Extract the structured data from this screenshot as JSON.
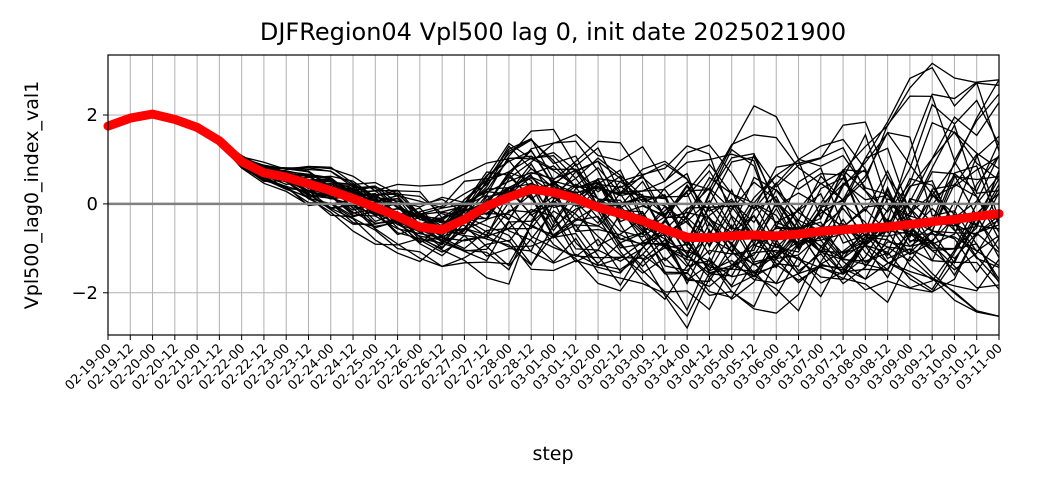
{
  "chart_data": {
    "type": "line",
    "title": "DJFRegion04 Vpl500 lag 0, init date 2025021900",
    "xlabel": "step",
    "ylabel": "Vpl500_lag0_index_val1",
    "categories": [
      "02-19-00",
      "02-19-12",
      "02-20-00",
      "02-20-12",
      "02-21-00",
      "02-21-12",
      "02-22-00",
      "02-22-12",
      "02-23-00",
      "02-23-12",
      "02-24-00",
      "02-24-12",
      "02-25-00",
      "02-25-12",
      "02-26-00",
      "02-26-12",
      "02-27-00",
      "02-27-12",
      "02-28-00",
      "02-28-12",
      "03-01-00",
      "03-01-12",
      "03-02-00",
      "03-02-12",
      "03-03-00",
      "03-03-12",
      "03-04-00",
      "03-04-12",
      "03-05-00",
      "03-05-12",
      "03-06-00",
      "03-06-12",
      "03-07-00",
      "03-07-12",
      "03-08-00",
      "03-08-12",
      "03-09-00",
      "03-09-12",
      "03-10-00",
      "03-10-12",
      "03-11-00"
    ],
    "ylim": [
      -2.95,
      3.35
    ],
    "yticks": [
      -2,
      0,
      2
    ],
    "ytick_labels": [
      "−2",
      "0",
      "2"
    ],
    "grid": true,
    "zero_line": {
      "y": 0,
      "color": "#808080"
    },
    "mean_series": {
      "color": "#ff0000",
      "values": [
        1.75,
        1.93,
        2.02,
        1.9,
        1.72,
        1.42,
        0.95,
        0.7,
        0.6,
        0.45,
        0.3,
        0.12,
        -0.08,
        -0.28,
        -0.52,
        -0.58,
        -0.35,
        -0.05,
        0.15,
        0.33,
        0.26,
        0.12,
        -0.08,
        -0.22,
        -0.38,
        -0.58,
        -0.75,
        -0.76,
        -0.72,
        -0.7,
        -0.72,
        -0.68,
        -0.62,
        -0.58,
        -0.55,
        -0.52,
        -0.46,
        -0.4,
        -0.35,
        -0.28,
        -0.22
      ]
    },
    "ensemble": {
      "color": "#000000",
      "member_count": 50,
      "note_envelope_min": [
        1.75,
        1.93,
        2.02,
        1.88,
        1.68,
        1.35,
        0.8,
        0.45,
        0.25,
        -0.15,
        -0.4,
        -0.65,
        -0.95,
        -1.15,
        -1.35,
        -1.45,
        -1.6,
        -1.85,
        -2.0,
        -2.0,
        -1.95,
        -2.0,
        -2.0,
        -2.05,
        -2.1,
        -2.55,
        -2.9,
        -2.75,
        -2.7,
        -2.6,
        -2.55,
        -2.55,
        -2.5,
        -2.5,
        -2.45,
        -2.45,
        -2.5,
        -2.45,
        -2.5,
        -2.55,
        -2.65
      ],
      "note_envelope_max": [
        1.75,
        1.93,
        2.02,
        1.92,
        1.76,
        1.48,
        1.15,
        1.0,
        0.98,
        0.95,
        0.85,
        0.65,
        0.6,
        0.55,
        0.45,
        0.5,
        0.75,
        1.2,
        1.75,
        1.85,
        1.75,
        1.85,
        1.75,
        1.6,
        1.55,
        1.5,
        1.8,
        2.1,
        2.35,
        2.45,
        2.1,
        2.2,
        2.05,
        2.1,
        2.3,
        2.7,
        3.15,
        3.35,
        3.0,
        2.9,
        2.95
      ]
    }
  }
}
